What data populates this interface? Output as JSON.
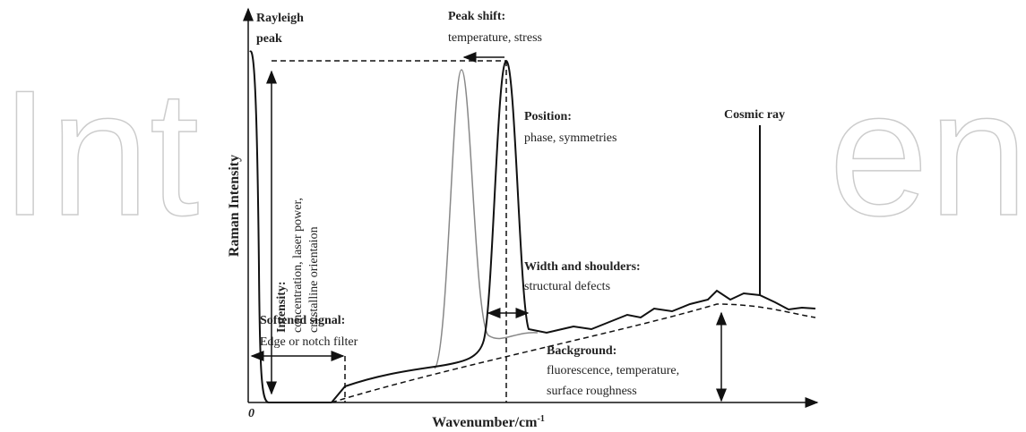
{
  "watermark": [
    "Int",
    "en"
  ],
  "y_axis_label": "Raman Intensity",
  "x_axis_label": {
    "text": "Wavenumber/cm",
    "superscript": "-1"
  },
  "origin_label": "0",
  "annotations": {
    "rayleigh": [
      "Rayleigh",
      "peak"
    ],
    "peak_shift": {
      "title": "Peak shift:",
      "text": "temperature, stress"
    },
    "position": {
      "title": "Position:",
      "text": "phase, symmetries"
    },
    "cosmic_ray": "Cosmic ray",
    "intensity": {
      "title": "Intensity:",
      "lines": [
        "concentration, laser power,",
        "crystalline orientaion"
      ]
    },
    "width": {
      "title": "Width and shoulders:",
      "text": "structural defects"
    },
    "softened": {
      "title": "Softened signal:",
      "text": "Edge or notch filter"
    },
    "background": {
      "title": "Background:",
      "lines": [
        "fluorescence, temperature,",
        "surface roughness"
      ]
    }
  }
}
